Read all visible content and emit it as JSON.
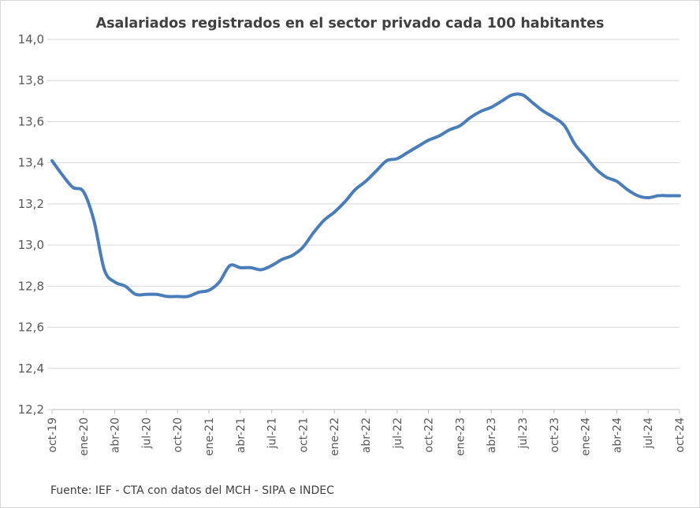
{
  "chart_data": {
    "type": "line",
    "title": "Asalariados registrados en el sector privado cada 100 habitantes",
    "source": "Fuente: IEF - CTA con datos del MCH - SIPA e INDEC",
    "ylim": [
      12.2,
      14.0
    ],
    "yticks": [
      12.2,
      12.4,
      12.6,
      12.8,
      13.0,
      13.2,
      13.4,
      13.6,
      13.8,
      14.0
    ],
    "ytick_labels": [
      "12,2",
      "12,4",
      "12,6",
      "12,8",
      "13,0",
      "13,2",
      "13,4",
      "13,6",
      "13,8",
      "14,0"
    ],
    "grid": true,
    "legend": "none",
    "line_color": "#4a7ebb",
    "xtick_labels": [
      "oct-19",
      "ene-20",
      "abr-20",
      "jul-20",
      "oct-20",
      "ene-21",
      "abr-21",
      "jul-21",
      "oct-21",
      "ene-22",
      "abr-22",
      "jul-22",
      "oct-22",
      "ene-23",
      "abr-23",
      "jul-23",
      "oct-23",
      "ene-24",
      "abr-24",
      "jul-24",
      "oct-24"
    ],
    "x": [
      "oct-19",
      "nov-19",
      "dic-19",
      "ene-20",
      "feb-20",
      "mar-20",
      "abr-20",
      "may-20",
      "jun-20",
      "jul-20",
      "ago-20",
      "sep-20",
      "oct-20",
      "nov-20",
      "dic-20",
      "ene-21",
      "feb-21",
      "mar-21",
      "abr-21",
      "may-21",
      "jun-21",
      "jul-21",
      "ago-21",
      "sep-21",
      "oct-21",
      "nov-21",
      "dic-21",
      "ene-22",
      "feb-22",
      "mar-22",
      "abr-22",
      "may-22",
      "jun-22",
      "jul-22",
      "ago-22",
      "sep-22",
      "oct-22",
      "nov-22",
      "dic-22",
      "ene-23",
      "feb-23",
      "mar-23",
      "abr-23",
      "may-23",
      "jun-23",
      "jul-23",
      "ago-23",
      "sep-23",
      "oct-23",
      "nov-23",
      "dic-23",
      "ene-24",
      "feb-24",
      "mar-24",
      "abr-24",
      "may-24",
      "jun-24",
      "jul-24",
      "ago-24",
      "sep-24",
      "oct-24"
    ],
    "series": [
      {
        "values": [
          13.41,
          13.34,
          13.28,
          13.26,
          13.12,
          12.88,
          12.82,
          12.8,
          12.76,
          12.76,
          12.76,
          12.75,
          12.75,
          12.75,
          12.77,
          12.78,
          12.82,
          12.9,
          12.89,
          12.89,
          12.88,
          12.9,
          12.93,
          12.95,
          12.99,
          13.06,
          13.12,
          13.16,
          13.21,
          13.27,
          13.31,
          13.36,
          13.41,
          13.42,
          13.45,
          13.48,
          13.51,
          13.53,
          13.56,
          13.58,
          13.62,
          13.65,
          13.67,
          13.7,
          13.73,
          13.73,
          13.69,
          13.65,
          13.62,
          13.58,
          13.49,
          13.43,
          13.37,
          13.33,
          13.31,
          13.27,
          13.24,
          13.23,
          13.24,
          13.24,
          13.24
        ]
      }
    ]
  }
}
